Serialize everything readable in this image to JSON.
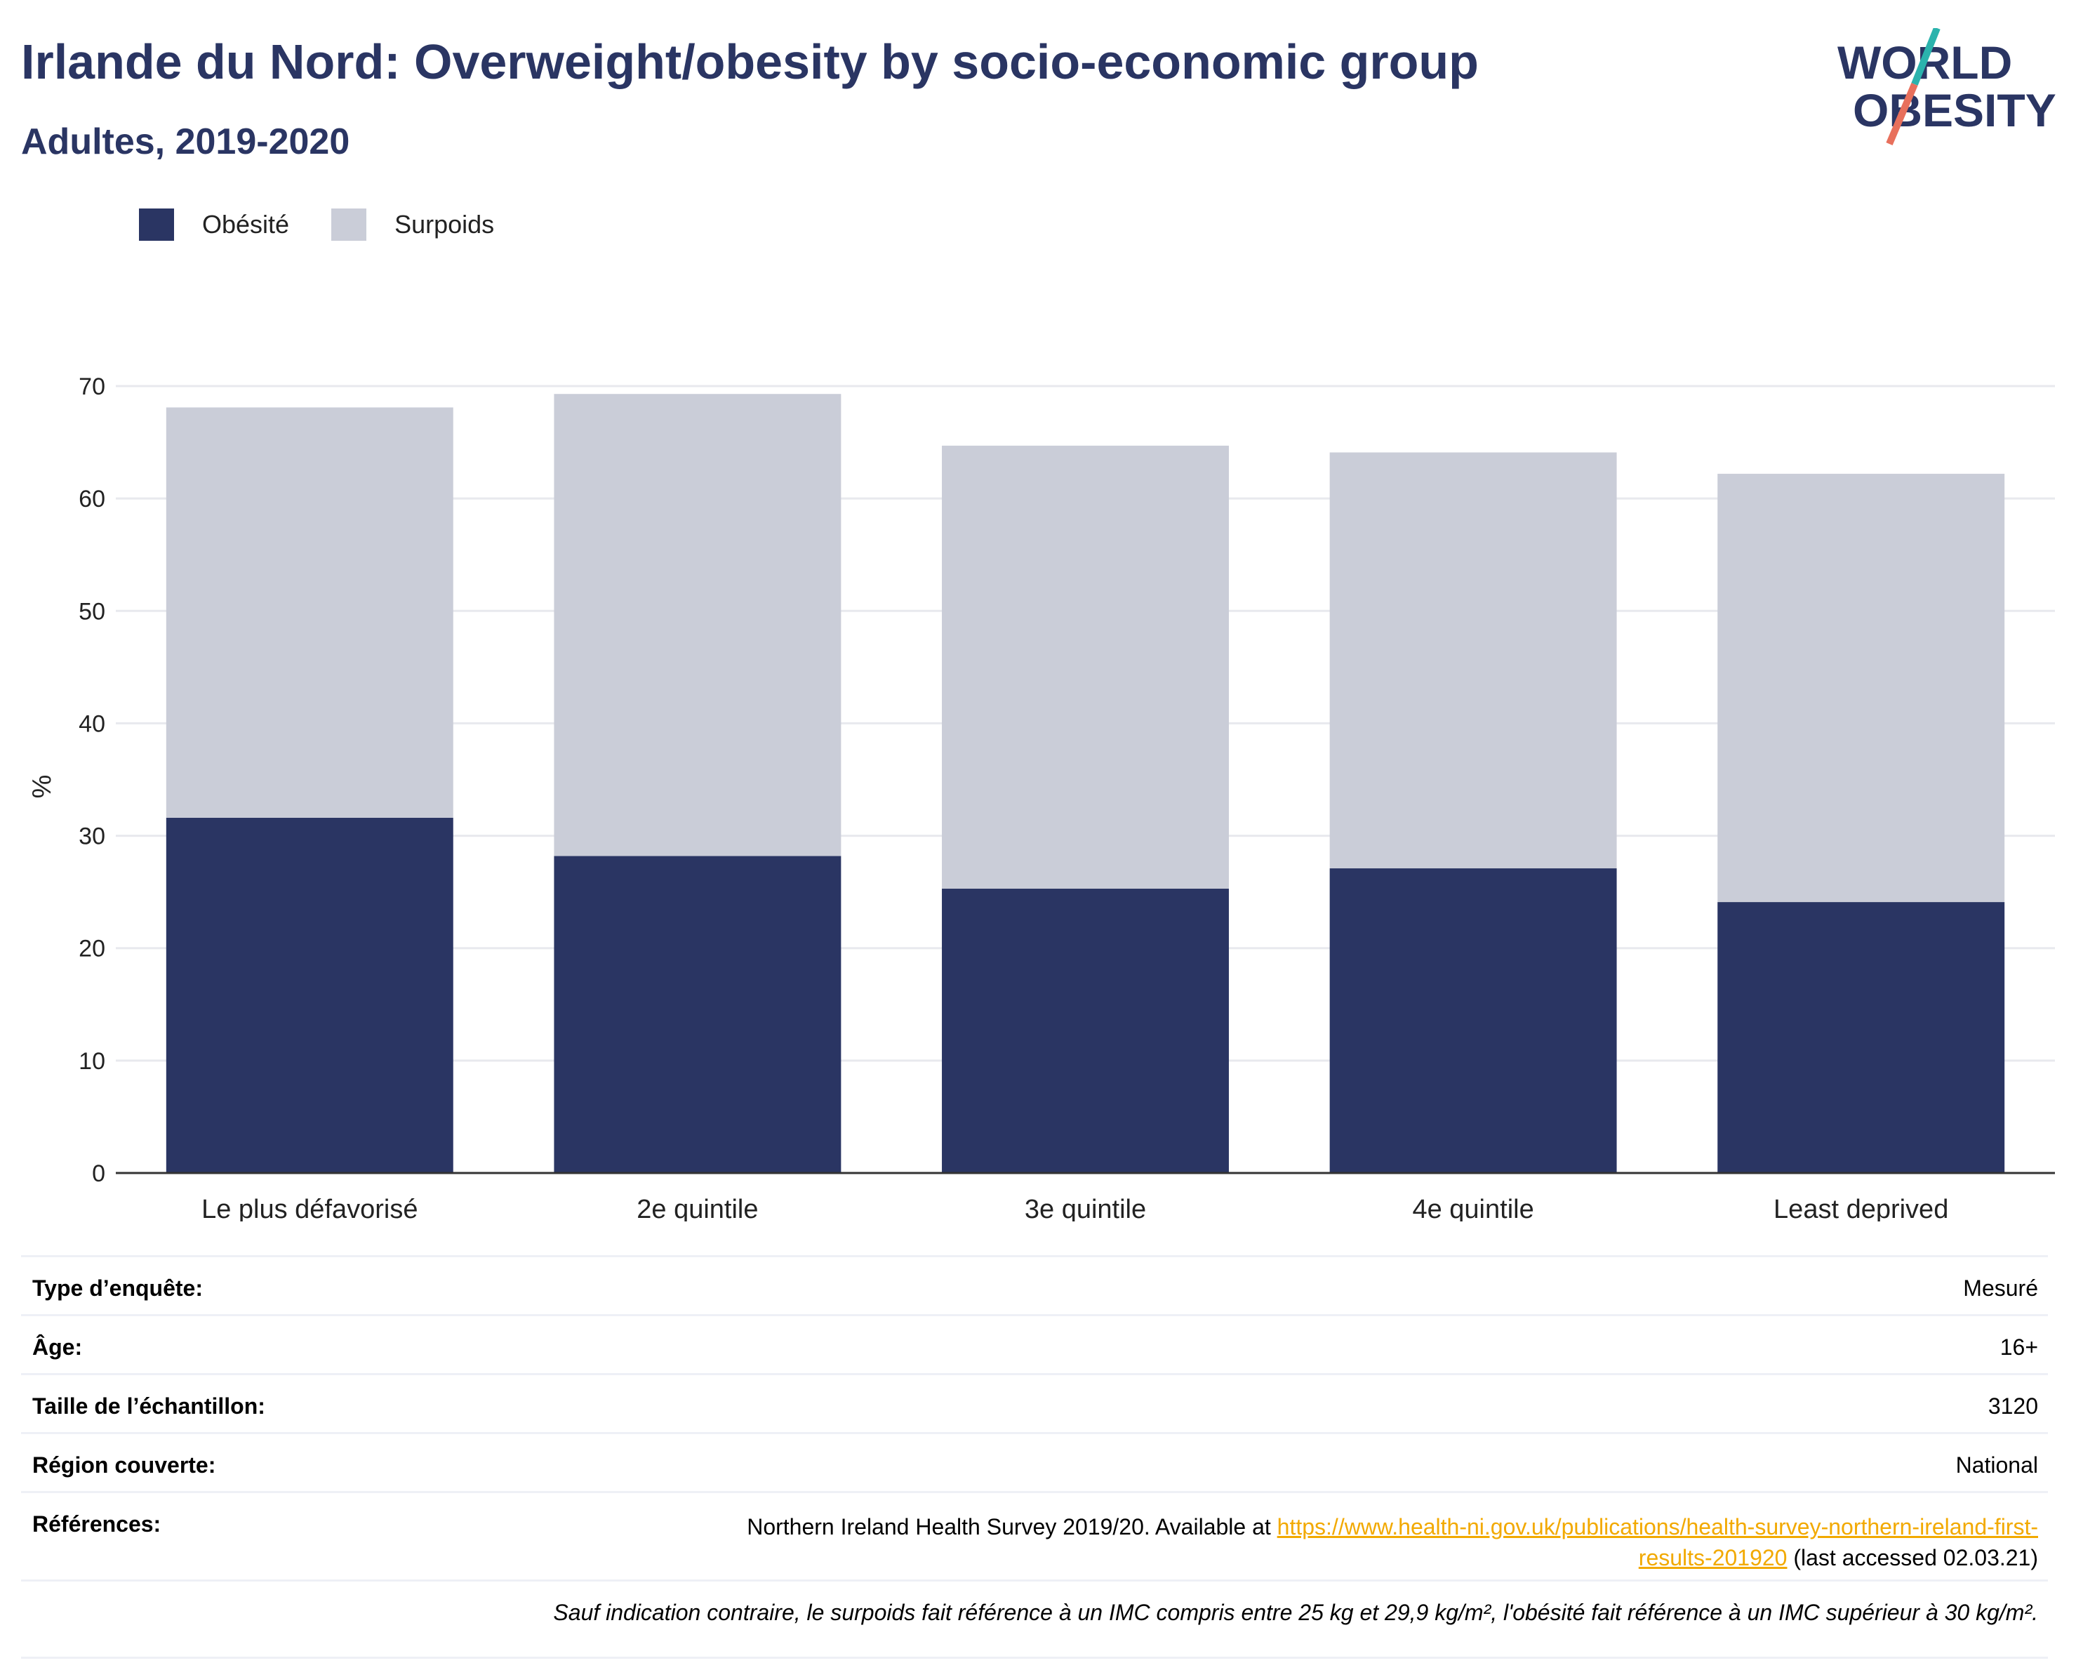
{
  "header": {
    "title": "Irlande du Nord: Overweight/obesity by socio-economic group",
    "subtitle": "Adultes, 2019-2020",
    "logo_line1": "WORLD",
    "logo_line2": "OBESITY"
  },
  "colors": {
    "obesity": "#2a3563",
    "overweight": "#cacdd8",
    "title": "#2a3563",
    "link": "#f2a900",
    "logo_teal": "#2bb3ad",
    "logo_coral": "#e8705c"
  },
  "legend": [
    {
      "label": "Obésité",
      "color": "#2a3563"
    },
    {
      "label": "Surpoids",
      "color": "#cacdd8"
    }
  ],
  "chart_data": {
    "type": "bar",
    "stacked": true,
    "categories": [
      "Le plus défavorisé",
      "2e quintile",
      "3e quintile",
      "4e quintile",
      "Least deprived"
    ],
    "series": [
      {
        "name": "Obésité",
        "values": [
          31.6,
          28.2,
          25.3,
          27.1,
          24.1
        ]
      },
      {
        "name": "Surpoids",
        "values": [
          36.5,
          41.1,
          39.4,
          37.0,
          38.1
        ]
      }
    ],
    "ylabel": "%",
    "ylim": [
      0,
      70
    ],
    "yticks": [
      0,
      10,
      20,
      30,
      40,
      50,
      60,
      70
    ],
    "grid": true,
    "legend_position": "top-left"
  },
  "meta": {
    "rows": [
      {
        "key": "Type d’enquête:",
        "value": "Mesuré"
      },
      {
        "key": "Âge:",
        "value": "16+"
      },
      {
        "key": "Taille de l’échantillon:",
        "value": "3120"
      },
      {
        "key": "Région couverte:",
        "value": "National"
      }
    ],
    "references_key": "Références:",
    "references_text_before": "Northern Ireland Health Survey 2019/20. Available at ",
    "references_link_part1": "https://www.health-ni.gov.uk/publications/health-survey-northern-ireland-first-",
    "references_link_part2": "results-201920",
    "references_text_after": " (last accessed 02.03.21)",
    "note": "Sauf indication contraire, le surpoids fait référence à un IMC compris entre 25 kg et 29,9 kg/m², l'obésité fait référence à un IMC supérieur à 30 kg/m²."
  }
}
